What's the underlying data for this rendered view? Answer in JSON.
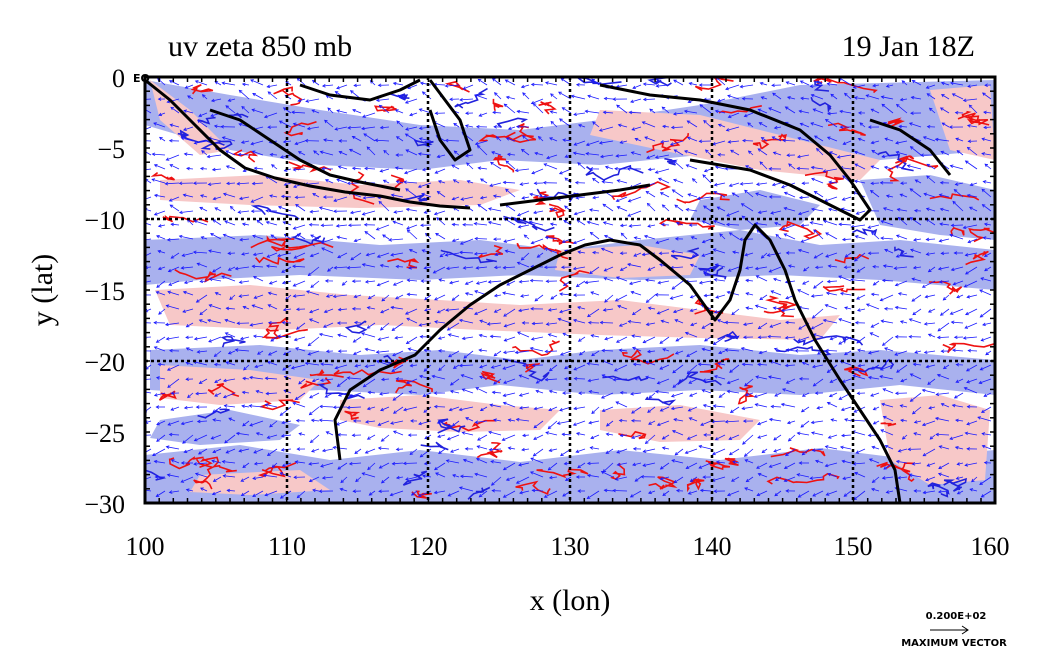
{
  "header": {
    "title_left": "uv zeta 850 mb",
    "title_right": "19 Jan 18Z"
  },
  "axes": {
    "xlabel": "x (lon)",
    "ylabel": "y (lat)",
    "x_ticks": [
      "100",
      "110",
      "120",
      "130",
      "140",
      "150",
      "160"
    ],
    "y_ticks": [
      "0",
      "−5",
      "−10",
      "−15",
      "−20",
      "−25",
      "−30"
    ],
    "y_zero_suffix": "EQ",
    "x_range": [
      100,
      160
    ],
    "y_range": [
      -30,
      0
    ],
    "grid_lon": [
      110,
      120,
      130,
      140,
      150
    ],
    "grid_lat": [
      -10,
      -20
    ]
  },
  "legend": {
    "vector_value": "0.200E+02",
    "vector_label": "MAXIMUM VECTOR"
  },
  "colors": {
    "positive_fill": "#f7c8c8",
    "negative_fill": "#a9b1ee",
    "positive_contour": "#ee1111",
    "negative_contour": "#2222dd",
    "vector": "#1a1aff",
    "coast": "#000000"
  }
}
